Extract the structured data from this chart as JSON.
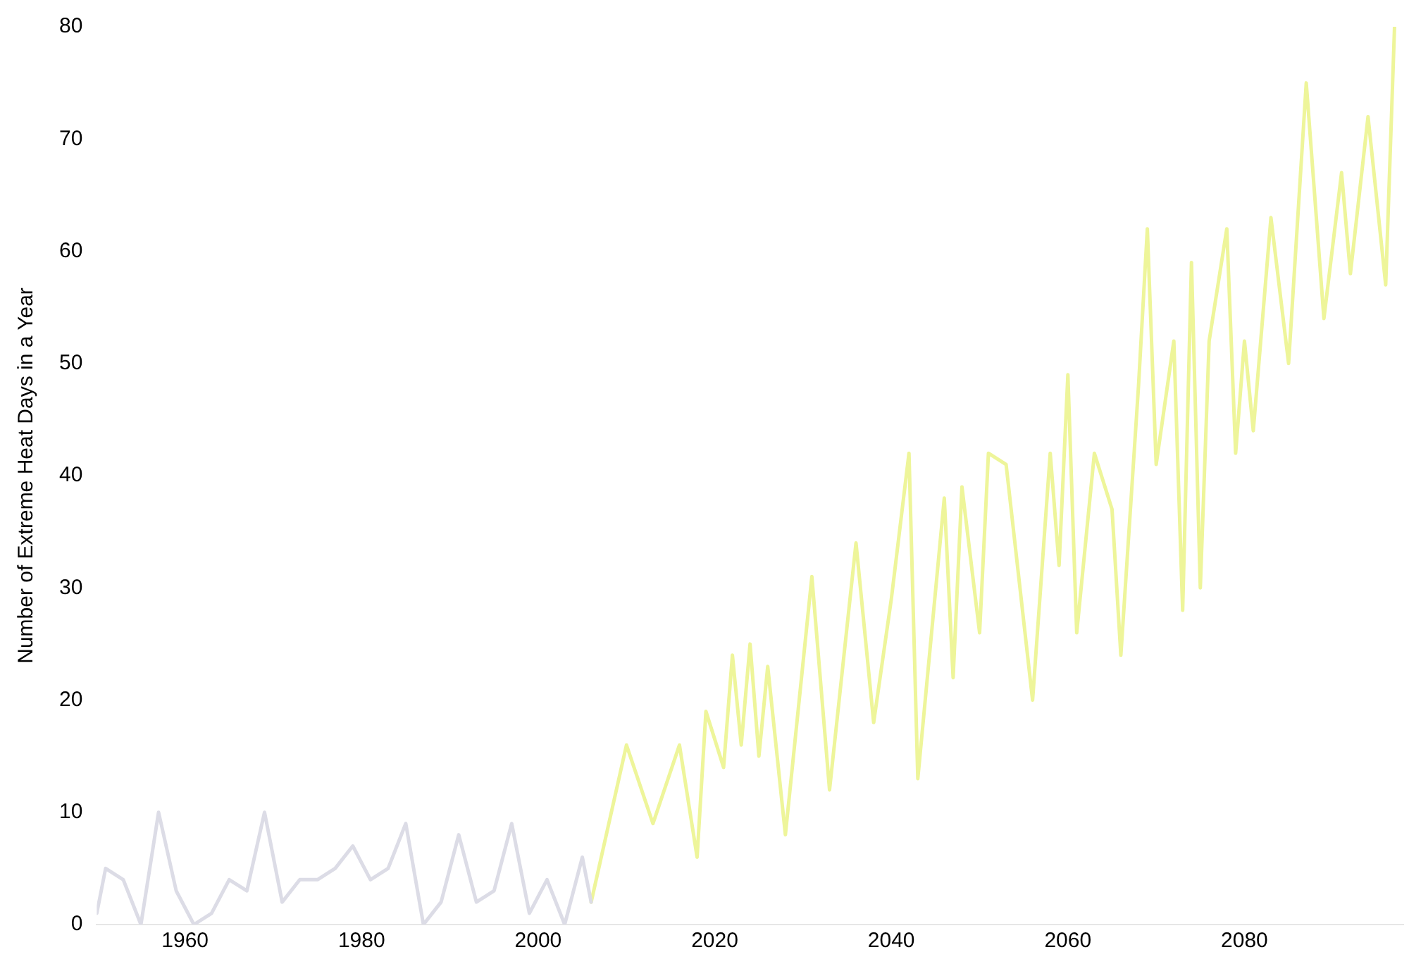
{
  "chart_data": {
    "type": "line",
    "ylabel": "Number of Extreme Heat Days in a Year",
    "xlim": [
      1950,
      2098
    ],
    "xticks": [
      1960,
      1980,
      2000,
      2020,
      2040,
      2060,
      2080
    ],
    "ylim": [
      0,
      80
    ],
    "yticks": [
      0,
      10,
      20,
      30,
      40,
      50,
      60,
      70,
      80
    ],
    "grid": false,
    "legend": false,
    "marker": "none",
    "line_style": "solid",
    "series": [
      {
        "color": "#dcdce6",
        "x": [
          1950,
          1951,
          1953,
          1955,
          1957,
          1959,
          1961,
          1963,
          1965,
          1967,
          1969,
          1971,
          1973,
          1975,
          1977,
          1979,
          1981,
          1983,
          1985,
          1987,
          1989,
          1991,
          1993,
          1995,
          1997,
          1999,
          2001,
          2003,
          2005,
          2006
        ],
        "values": [
          1,
          5,
          4,
          0,
          10,
          3,
          0,
          1,
          4,
          3,
          10,
          2,
          4,
          4,
          5,
          7,
          4,
          5,
          9,
          0,
          2,
          8,
          2,
          3,
          9,
          1,
          4,
          0,
          6,
          2
        ]
      },
      {
        "color": "#eef59a",
        "x": [
          2006,
          2010,
          2013,
          2016,
          2018,
          2019,
          2021,
          2022,
          2023,
          2024,
          2025,
          2026,
          2028,
          2031,
          2033,
          2036,
          2038,
          2040,
          2042,
          2043,
          2046,
          2047,
          2048,
          2050,
          2051,
          2053,
          2056,
          2058,
          2059,
          2060,
          2061,
          2063,
          2065,
          2066,
          2068,
          2069,
          2070,
          2072,
          2073,
          2074,
          2075,
          2076,
          2078,
          2079,
          2080,
          2081,
          2083,
          2085,
          2087,
          2089,
          2091,
          2092,
          2094,
          2096,
          2097
        ],
        "values": [
          2,
          16,
          9,
          16,
          6,
          19,
          14,
          24,
          16,
          25,
          15,
          23,
          8,
          31,
          12,
          34,
          18,
          29,
          42,
          13,
          38,
          22,
          39,
          26,
          42,
          41,
          20,
          42,
          32,
          49,
          26,
          42,
          37,
          24,
          48,
          62,
          41,
          52,
          28,
          59,
          30,
          52,
          62,
          42,
          52,
          44,
          63,
          50,
          75,
          54,
          67,
          58,
          72,
          57,
          80
        ]
      }
    ]
  }
}
